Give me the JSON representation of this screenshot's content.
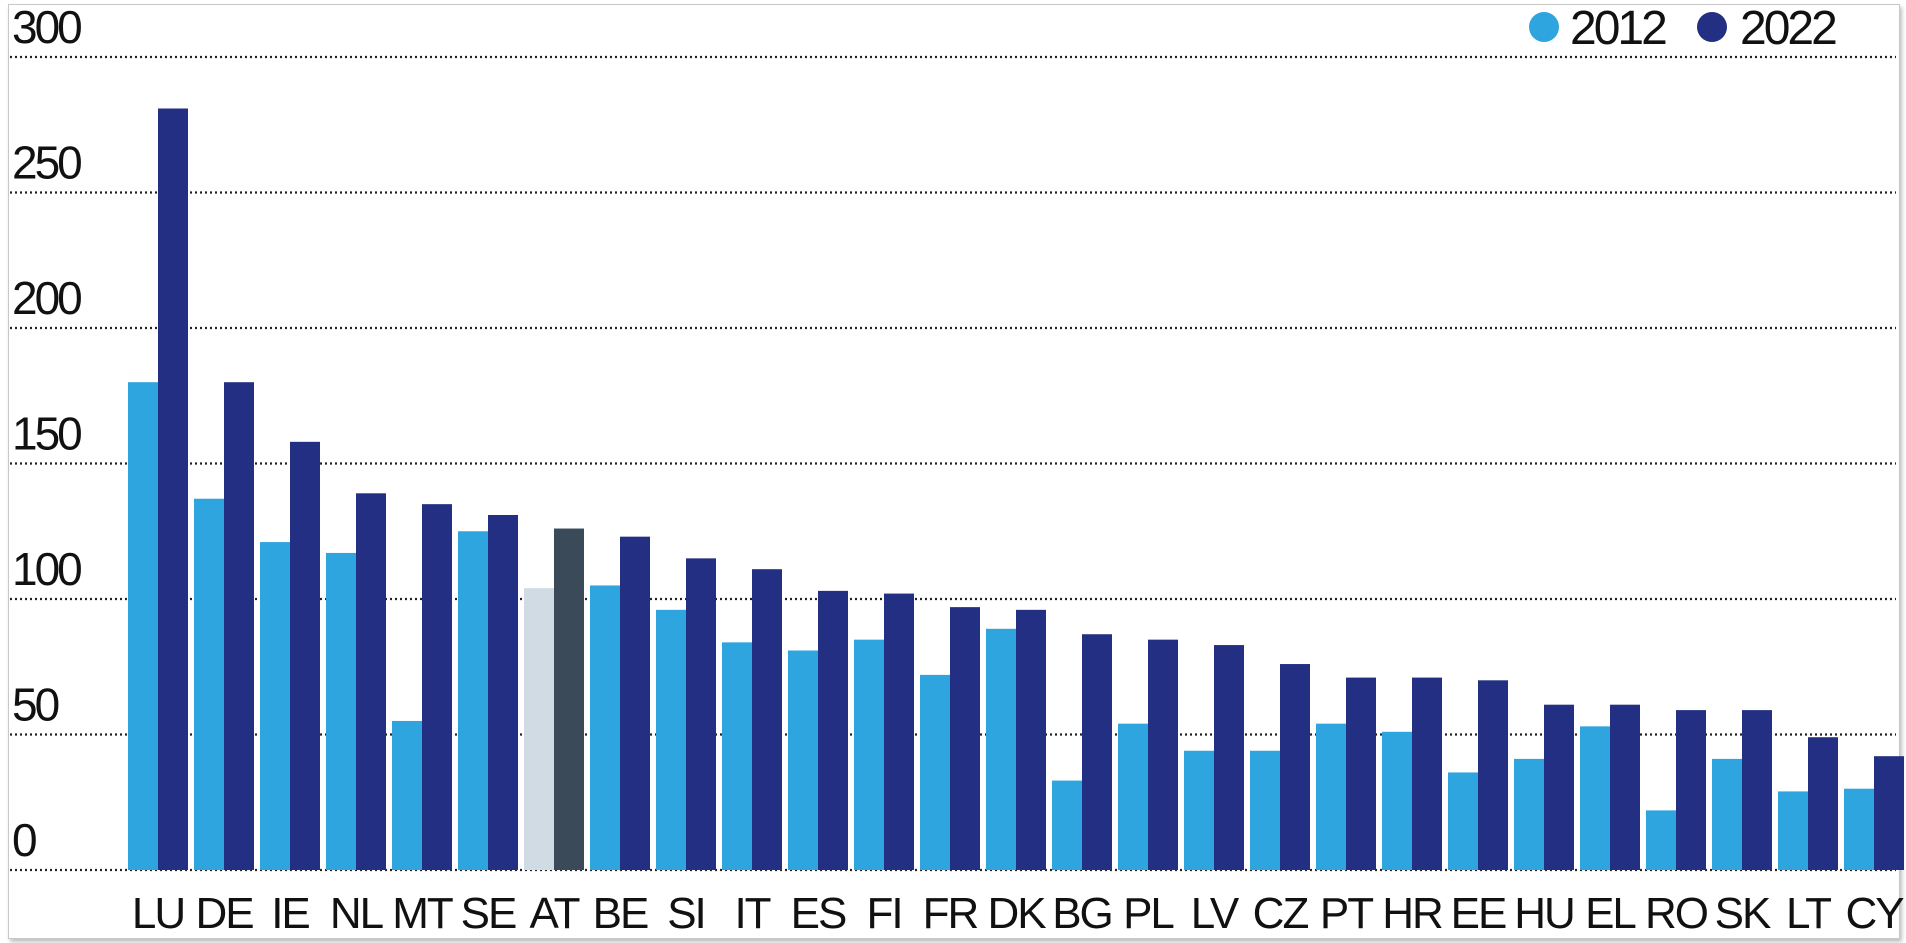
{
  "chart_data": {
    "type": "bar",
    "title": "",
    "xlabel": "",
    "ylabel": "",
    "ylim": [
      0,
      300
    ],
    "yticks": [
      0,
      50,
      100,
      150,
      200,
      250,
      300
    ],
    "grid": true,
    "legend_position": "top-right",
    "categories": [
      "LU",
      "DE",
      "IE",
      "NL",
      "MT",
      "SE",
      "AT",
      "BE",
      "SI",
      "IT",
      "ES",
      "FI",
      "FR",
      "DK",
      "BG",
      "PL",
      "LV",
      "CZ",
      "PT",
      "HR",
      "EE",
      "HU",
      "EL",
      "RO",
      "SK",
      "LT",
      "CY"
    ],
    "highlight_category": "AT",
    "series": [
      {
        "name": "2012",
        "color": "#2fa5e0",
        "highlight_color": "#d0dbe3",
        "values": [
          180,
          137,
          121,
          117,
          55,
          125,
          104,
          105,
          96,
          84,
          81,
          85,
          72,
          89,
          33,
          54,
          44,
          44,
          54,
          51,
          36,
          41,
          53,
          22,
          41,
          29,
          30
        ]
      },
      {
        "name": "2022",
        "color": "#232f82",
        "highlight_color": "#3a4a58",
        "values": [
          281,
          180,
          158,
          139,
          135,
          131,
          126,
          123,
          115,
          111,
          103,
          102,
          97,
          96,
          87,
          85,
          83,
          76,
          71,
          71,
          70,
          61,
          61,
          59,
          59,
          49,
          42
        ]
      }
    ]
  }
}
